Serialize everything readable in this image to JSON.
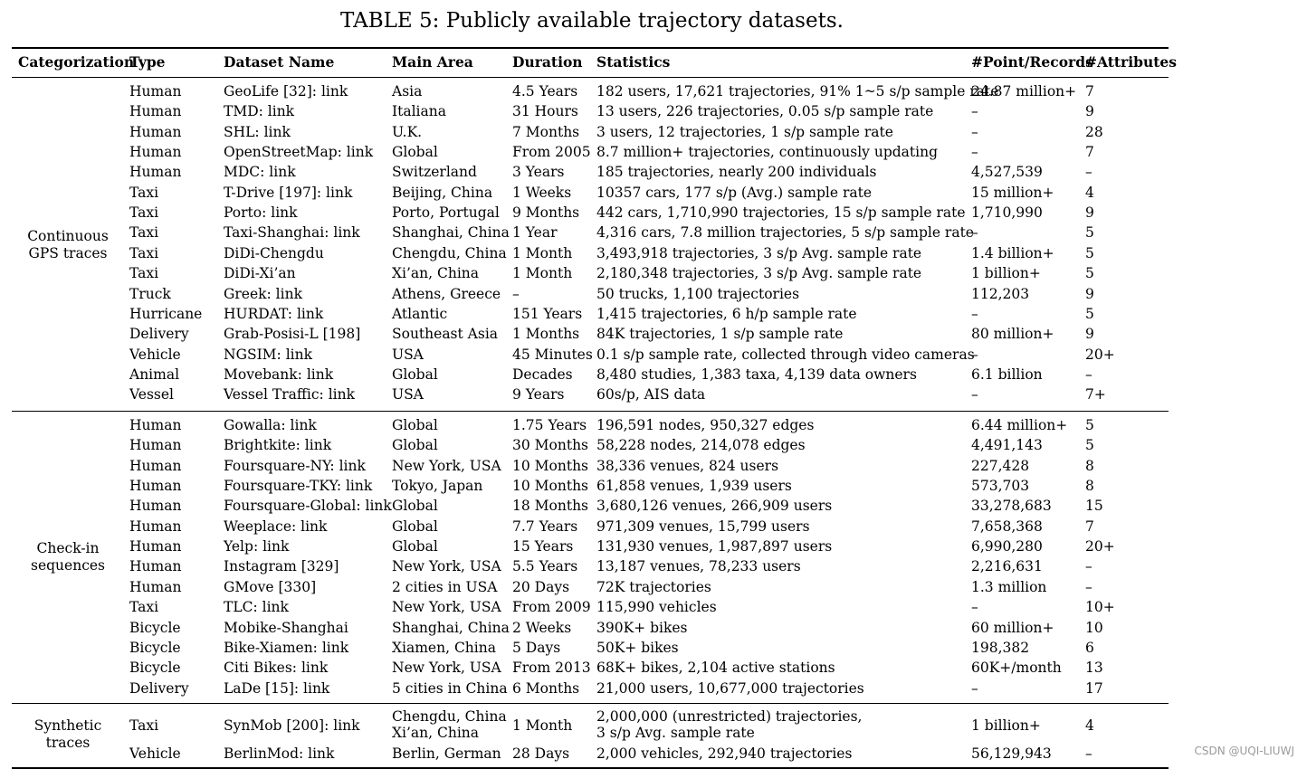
{
  "caption": "TABLE 5: Publicly available trajectory datasets.",
  "headers": [
    "Categorization",
    "Type",
    "Dataset Name",
    "Main Area",
    "Duration",
    "Statistics",
    "#Point/Records",
    "#Attributes"
  ],
  "groups": [
    {
      "label": [
        "Continuous",
        "GPS traces"
      ],
      "rows": [
        [
          "Human",
          "GeoLife [32]: link",
          "Asia",
          "4.5 Years",
          "182 users, 17,621 trajectories, 91% 1~5 s/p sample rate",
          "24.87 million+",
          "7"
        ],
        [
          "Human",
          "TMD: link",
          "Italiana",
          "31 Hours",
          "13 users, 226 trajectories, 0.05 s/p sample rate",
          "–",
          "9"
        ],
        [
          "Human",
          "SHL: link",
          "U.K.",
          "7 Months",
          "3 users, 12 trajectories, 1 s/p sample rate",
          "–",
          "28"
        ],
        [
          "Human",
          "OpenStreetMap: link",
          "Global",
          "From 2005",
          "8.7 million+ trajectories, continuously updating",
          "–",
          "7"
        ],
        [
          "Human",
          "MDC: link",
          "Switzerland",
          "3 Years",
          "185 trajectories, nearly 200 individuals",
          "4,527,539",
          "–"
        ],
        [
          "Taxi",
          "T-Drive [197]: link",
          "Beijing, China",
          "1 Weeks",
          "10357 cars, 177 s/p (Avg.) sample rate",
          "15 million+",
          "4"
        ],
        [
          "Taxi",
          "Porto: link",
          "Porto, Portugal",
          "9 Months",
          "442 cars, 1,710,990 trajectories, 15 s/p sample rate",
          "1,710,990",
          "9"
        ],
        [
          "Taxi",
          "Taxi-Shanghai: link",
          "Shanghai, China",
          "1 Year",
          "4,316 cars, 7.8 million trajectories, 5 s/p sample rate",
          "–",
          "5"
        ],
        [
          "Taxi",
          "DiDi-Chengdu",
          "Chengdu, China",
          "1 Month",
          "3,493,918 trajectories, 3 s/p Avg. sample rate",
          "1.4 billion+",
          "5"
        ],
        [
          "Taxi",
          "DiDi-Xi’an",
          "Xi’an, China",
          "1 Month",
          "2,180,348 trajectories, 3 s/p Avg. sample rate",
          "1 billion+",
          "5"
        ],
        [
          "Truck",
          "Greek: link",
          "Athens, Greece",
          "–",
          "50 trucks, 1,100 trajectories",
          "112,203",
          "9"
        ],
        [
          "Hurricane",
          "HURDAT: link",
          "Atlantic",
          "151 Years",
          "1,415 trajectories, 6 h/p sample rate",
          "–",
          "5"
        ],
        [
          "Delivery",
          "Grab-Posisi-L [198]",
          "Southeast Asia",
          "1 Months",
          "84K trajectories, 1 s/p sample rate",
          "80 million+",
          "9"
        ],
        [
          "Vehicle",
          "NGSIM: link",
          "USA",
          "45 Minutes",
          "0.1 s/p sample rate, collected through video cameras",
          "–",
          "20+"
        ],
        [
          "Animal",
          "Movebank: link",
          "Global",
          "Decades",
          "8,480 studies, 1,383 taxa, 4,139 data owners",
          "6.1 billion",
          "–"
        ],
        [
          "Vessel",
          "Vessel Traffic: link",
          "USA",
          "9 Years",
          "60s/p, AIS data",
          "–",
          "7+"
        ]
      ]
    },
    {
      "label": [
        "Check-in",
        "sequences"
      ],
      "rows": [
        [
          "Human",
          "Gowalla: link",
          "Global",
          "1.75 Years",
          "196,591 nodes, 950,327 edges",
          "6.44 million+",
          "5"
        ],
        [
          "Human",
          "Brightkite: link",
          "Global",
          "30 Months",
          "58,228 nodes, 214,078 edges",
          "4,491,143",
          "5"
        ],
        [
          "Human",
          "Foursquare-NY: link",
          "New York, USA",
          "10 Months",
          "38,336 venues, 824 users",
          "227,428",
          "8"
        ],
        [
          "Human",
          "Foursquare-TKY: link",
          "Tokyo, Japan",
          "10 Months",
          "61,858 venues, 1,939 users",
          "573,703",
          "8"
        ],
        [
          "Human",
          "Foursquare-Global: link",
          "Global",
          "18 Months",
          "3,680,126 venues, 266,909 users",
          "33,278,683",
          "15"
        ],
        [
          "Human",
          "Weeplace: link",
          "Global",
          "7.7 Years",
          "971,309 venues, 15,799 users",
          "7,658,368",
          "7"
        ],
        [
          "Human",
          "Yelp: link",
          "Global",
          "15 Years",
          "131,930 venues, 1,987,897 users",
          "6,990,280",
          "20+"
        ],
        [
          "Human",
          "Instagram [329]",
          "New York, USA",
          "5.5 Years",
          "13,187 venues, 78,233 users",
          "2,216,631",
          "–"
        ],
        [
          "Human",
          "GMove [330]",
          "2 cities in USA",
          "20 Days",
          "72K trajectories",
          "1.3 million",
          "–"
        ],
        [
          "Taxi",
          "TLC: link",
          "New York, USA",
          "From 2009",
          "115,990 vehicles",
          "–",
          "10+"
        ],
        [
          "Bicycle",
          "Mobike-Shanghai",
          "Shanghai, China",
          "2 Weeks",
          "390K+ bikes",
          "60 million+",
          "10"
        ],
        [
          "Bicycle",
          "Bike-Xiamen: link",
          "Xiamen, China",
          "5 Days",
          "50K+ bikes",
          "198,382",
          "6"
        ],
        [
          "Bicycle",
          "Citi Bikes: link",
          "New York, USA",
          "From 2013",
          "68K+ bikes, 2,104 active stations",
          "60K+/month",
          "13"
        ],
        [
          "Delivery",
          "LaDe [15]: link",
          "5 cities in China",
          "6 Months",
          "21,000 users, 10,677,000 trajectories",
          "–",
          "17"
        ]
      ]
    },
    {
      "label": [
        "Synthetic",
        "traces"
      ],
      "rows": [
        [
          "Taxi",
          "SynMob [200]: link",
          "Chengdu, China\nXi’an, China",
          "1 Month",
          "2,000,000 (unrestricted) trajectories,\n3 s/p Avg. sample rate",
          "1 billion+",
          "4"
        ],
        [
          "Vehicle",
          "BerlinMod: link",
          "Berlin, German",
          "28 Days",
          "2,000 vehicles, 292,940 trajectories",
          "56,129,943",
          "–"
        ]
      ]
    }
  ],
  "watermark": "CSDN @UQI-LIUWJ"
}
